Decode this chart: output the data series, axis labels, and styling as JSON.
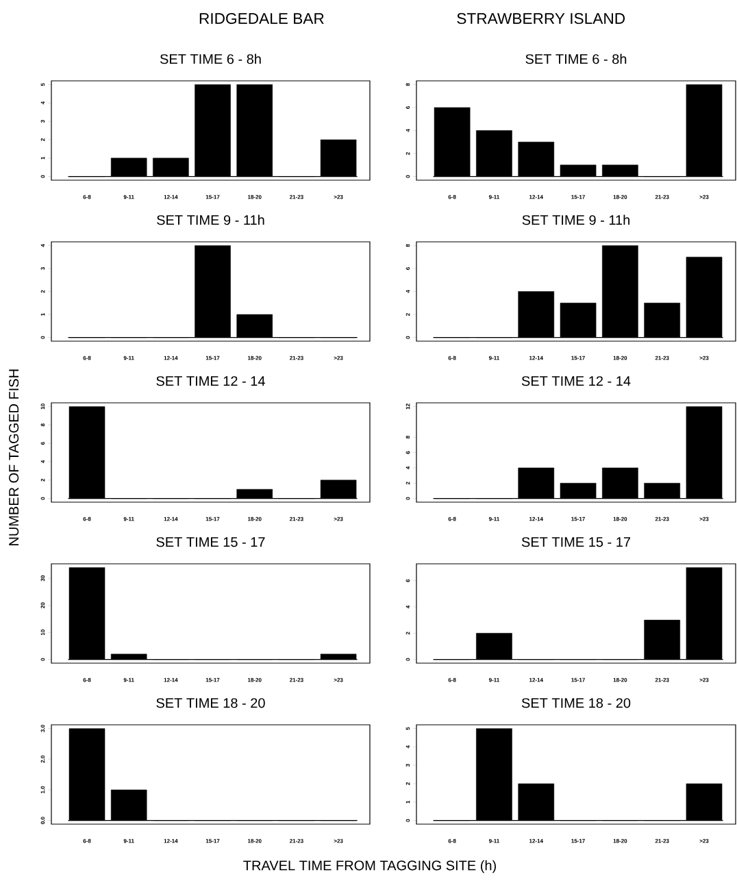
{
  "chart_data": [
    {
      "type": "bar",
      "title": "SET TIME 6 - 8h",
      "annotations": [
        "RIDGEDALE BAR"
      ],
      "categories": [
        "6-8",
        "9-11",
        "12-14",
        "15-17",
        "18-20",
        "21-23",
        ">23"
      ],
      "values": [
        0,
        1,
        1,
        5,
        5,
        0,
        2
      ],
      "color": "#000000",
      "ylim": [
        -0.2,
        5.2
      ],
      "yticks": [
        0,
        1,
        2,
        3,
        4,
        5
      ],
      "ref_lines": [
        {
          "axis": "y",
          "value": 0
        }
      ]
    },
    {
      "type": "bar",
      "title": "SET TIME 6 - 8h",
      "annotations": [
        "STRAWBERRY ISLAND"
      ],
      "categories": [
        "6-8",
        "9-11",
        "12-14",
        "15-17",
        "18-20",
        "21-23",
        ">23"
      ],
      "values": [
        6,
        4,
        3,
        1,
        1,
        0,
        8
      ],
      "color": "#000000",
      "ylim": [
        -0.32,
        8.32
      ],
      "yticks": [
        0,
        2,
        4,
        6,
        8
      ],
      "ref_lines": [
        {
          "axis": "y",
          "value": 0
        }
      ]
    },
    {
      "type": "bar",
      "title": "SET TIME 9 - 11h",
      "categories": [
        "6-8",
        "9-11",
        "12-14",
        "15-17",
        "18-20",
        "21-23",
        ">23"
      ],
      "values": [
        0,
        0,
        0,
        4,
        1,
        0,
        0
      ],
      "color": "#000000",
      "ylim": [
        -0.16,
        4.16
      ],
      "yticks": [
        0,
        1,
        2,
        3,
        4
      ],
      "ref_lines": [
        {
          "axis": "y",
          "value": 0
        }
      ]
    },
    {
      "type": "bar",
      "title": "SET TIME 9 - 11h",
      "categories": [
        "6-8",
        "9-11",
        "12-14",
        "15-17",
        "18-20",
        "21-23",
        ">23"
      ],
      "values": [
        0,
        0,
        4,
        3,
        8,
        3,
        7
      ],
      "color": "#000000",
      "ylim": [
        -0.32,
        8.32
      ],
      "yticks": [
        0,
        2,
        4,
        6,
        8
      ],
      "ref_lines": [
        {
          "axis": "y",
          "value": 0
        }
      ]
    },
    {
      "type": "bar",
      "title": "SET TIME 12 - 14",
      "ylabel": "NUMBER OF TAGGED FISH",
      "categories": [
        "6-8",
        "9-11",
        "12-14",
        "15-17",
        "18-20",
        "21-23",
        ">23"
      ],
      "values": [
        10,
        0,
        0,
        0,
        1,
        0,
        2
      ],
      "color": "#000000",
      "ylim": [
        -0.4,
        10.4
      ],
      "yticks": [
        0,
        2,
        4,
        6,
        8,
        10
      ],
      "ref_lines": [
        {
          "axis": "y",
          "value": 0
        }
      ]
    },
    {
      "type": "bar",
      "title": "SET TIME 12 - 14",
      "categories": [
        "6-8",
        "9-11",
        "12-14",
        "15-17",
        "18-20",
        "21-23",
        ">23"
      ],
      "values": [
        0,
        0,
        4,
        2,
        4,
        2,
        12
      ],
      "color": "#000000",
      "ylim": [
        -0.48,
        12.48
      ],
      "yticks": [
        0,
        2,
        4,
        6,
        8,
        12
      ],
      "ref_lines": [
        {
          "axis": "y",
          "value": 0
        }
      ]
    },
    {
      "type": "bar",
      "title": "SET TIME 15 - 17",
      "categories": [
        "6-8",
        "9-11",
        "12-14",
        "15-17",
        "18-20",
        "21-23",
        ">23"
      ],
      "values": [
        34,
        2,
        0,
        0,
        0,
        0,
        2
      ],
      "color": "#000000",
      "ylim": [
        -1.36,
        35.36
      ],
      "yticks": [
        0,
        10,
        20,
        30
      ],
      "ref_lines": [
        {
          "axis": "y",
          "value": 0
        }
      ]
    },
    {
      "type": "bar",
      "title": "SET TIME 15 - 17",
      "categories": [
        "6-8",
        "9-11",
        "12-14",
        "15-17",
        "18-20",
        "21-23",
        ">23"
      ],
      "values": [
        0,
        2,
        0,
        0,
        0,
        3,
        7
      ],
      "color": "#000000",
      "ylim": [
        -0.28,
        7.28
      ],
      "yticks": [
        0,
        2,
        4,
        6
      ],
      "ref_lines": [
        {
          "axis": "y",
          "value": 0
        }
      ]
    },
    {
      "type": "bar",
      "title": "SET TIME 18 - 20",
      "xlabel": "TRAVEL TIME FROM TAGGING SITE (h)",
      "categories": [
        "6-8",
        "9-11",
        "12-14",
        "15-17",
        "18-20",
        "21-23",
        ">23"
      ],
      "values": [
        3,
        1,
        0,
        0,
        0,
        0,
        0
      ],
      "color": "#000000",
      "ylim": [
        -0.12,
        3.12
      ],
      "yticks": [
        {
          "value": 0,
          "label": "0.0"
        },
        {
          "value": 1,
          "label": "1.0"
        },
        {
          "value": 2,
          "label": "2.0"
        },
        {
          "value": 3,
          "label": "3.0"
        }
      ],
      "ref_lines": [
        {
          "axis": "y",
          "value": 0
        }
      ]
    },
    {
      "type": "bar",
      "title": "SET TIME 18 - 20",
      "categories": [
        "6-8",
        "9-11",
        "12-14",
        "15-17",
        "18-20",
        "21-23",
        ">23"
      ],
      "values": [
        0,
        5,
        2,
        0,
        0,
        0,
        2
      ],
      "color": "#000000",
      "ylim": [
        -0.2,
        5.2
      ],
      "yticks": [
        0,
        1,
        2,
        3,
        4,
        5
      ],
      "ref_lines": [
        {
          "axis": "y",
          "value": 0
        }
      ]
    }
  ]
}
